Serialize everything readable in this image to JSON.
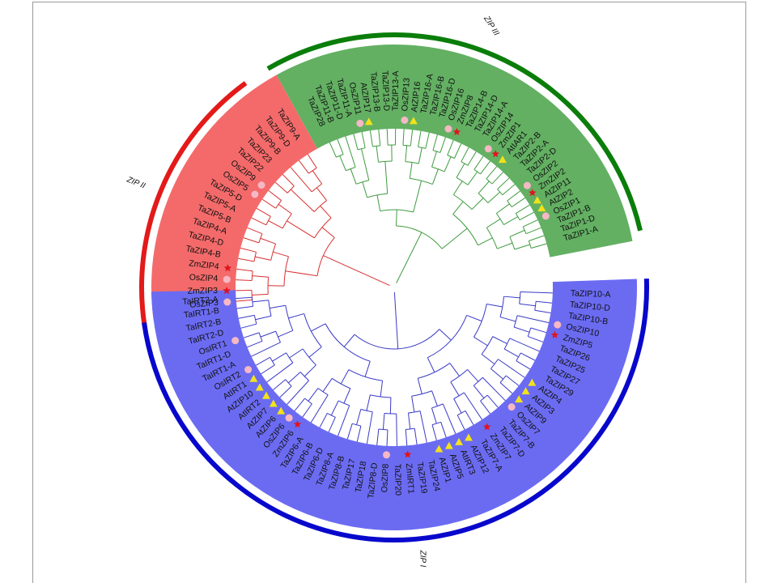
{
  "groups": [
    {
      "label": "ZIP III",
      "leaves": [
        "TaZIP28",
        "TaZIP11-B",
        "TaZIP11-D",
        "TaZIP11-A",
        "OsZIP11",
        "AtZIP17",
        "TaZIP13-B",
        "TaZIP13-D",
        "TaZIP13-A",
        "OsZIP13",
        "AtZIP16",
        "TaZIP16-A",
        "TaZIP16-B",
        "TaZIP16-D",
        "OsZIP16",
        "ZmZIP8",
        "TaZIP14-B",
        "TaZIP14-D",
        "TaZIP14-A",
        "OsZIP14",
        "ZmZIP1",
        "AtIAR1",
        "TaZIP2-B",
        "TaZIP2-A",
        "TaZIP2-D",
        "OsZIP2",
        "ZmZIP2",
        "AtZIP11",
        "AtZIP2",
        "OsZIP1",
        "TaZIP1-B",
        "TaZIP1-D",
        "TaZIP1-A"
      ]
    },
    {
      "label": "ZIP II",
      "leaves": [
        "TaZIP9-A",
        "TaZIP9-D",
        "TaZIP9-B",
        "TaZIP23",
        "TaZIP22",
        "OsZIP9",
        "OsZIP5",
        "TaZIP5-D",
        "TaZIP5-A",
        "TaZIP5-B",
        "TaZIP4-A",
        "TaZIP4-D",
        "TaZIP4-B",
        "ZmZIP4",
        "OsZIP4",
        "ZmZIP3",
        "OsZIP3"
      ]
    },
    {
      "label": "ZIP I",
      "leaves": [
        "TaIRT2-A",
        "TaIRT1-B",
        "TaIRT2-B",
        "TaIRT2-D",
        "OsIRT1",
        "TaIRT1-D",
        "TaIRT1-A",
        "OsIRT2",
        "AtIRT1",
        "AtZIP10",
        "AtIRT2",
        "AtZIP7",
        "AtZIP6",
        "OsZIP6",
        "ZmZIP6",
        "TaZIP6-A",
        "TaZIP6-B",
        "TaZIP6-D",
        "TaZIP8-A",
        "TaZIP8-B",
        "TaZIP17",
        "TaZIP18",
        "TaZIP8-D",
        "OsZIP8",
        "TaZIP20",
        "ZmIRT1",
        "TaZIP19",
        "TaZIP24",
        "AtZIP1",
        "AtZIP5",
        "AtIRT3",
        "AtZIP12",
        "TaZIP7-A",
        "ZmZIP7",
        "TaZIP7-D",
        "TaZIP7-B",
        "OsZIP7",
        "AtZIP9",
        "AtZIP3",
        "AtZIP4",
        "TaZIP29",
        "TaZIP27",
        "TaZIP25",
        "TaZIP26",
        "ZmZIP5",
        "OsZIP10",
        "TaZIP10-B",
        "TaZIP10-D",
        "TaZIP10-A"
      ]
    }
  ]
}
